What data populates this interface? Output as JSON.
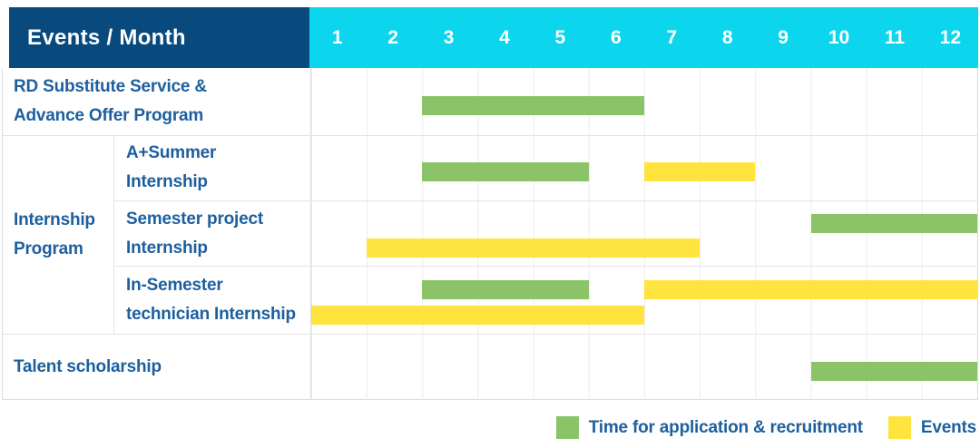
{
  "header": {
    "title": "Events / Month"
  },
  "months": [
    "1",
    "2",
    "3",
    "4",
    "5",
    "6",
    "7",
    "8",
    "9",
    "10",
    "11",
    "12"
  ],
  "colors": {
    "navy_header": "#084a7e",
    "cyan_header": "#0cd6ee",
    "green": "#8bc468",
    "yellow": "#ffe33f",
    "label_blue": "#1d5f9e"
  },
  "legend": {
    "items": [
      {
        "color": "green",
        "label": "Time for application & recruitment"
      },
      {
        "color": "yellow",
        "label": "Events"
      }
    ]
  },
  "chart_data": {
    "type": "gantt",
    "title": "Events / Month",
    "x_axis": {
      "label": "Month",
      "ticks": [
        1,
        2,
        3,
        4,
        5,
        6,
        7,
        8,
        9,
        10,
        11,
        12
      ]
    },
    "legend_entries": [
      "Time for application & recruitment",
      "Events"
    ],
    "group_spans": [
      {
        "label": "Internship Program",
        "label_lines": [
          "Internship",
          "Program"
        ],
        "row_indexes": [
          1,
          2,
          3
        ]
      }
    ],
    "rows": [
      {
        "group": "",
        "label": "RD Substitute Service & Advance Offer Program",
        "label_lines": [
          "RD Substitute Service &",
          "Advance Offer Program"
        ],
        "bars": [
          {
            "series": "Time for application & recruitment",
            "color": "green",
            "lane": "center",
            "start_month": 3,
            "end_month": 6
          }
        ]
      },
      {
        "group": "Internship Program",
        "label": "A+Summer Internship",
        "label_lines": [
          "A+Summer",
          "Internship"
        ],
        "bars": [
          {
            "series": "Time for application & recruitment",
            "color": "green",
            "lane": "center",
            "start_month": 3,
            "end_month": 5
          },
          {
            "series": "Events",
            "color": "yellow",
            "lane": "center",
            "start_month": 7,
            "end_month": 8
          }
        ]
      },
      {
        "group": "Internship Program",
        "label": "Semester project Internship",
        "label_lines": [
          "Semester project",
          "Internship"
        ],
        "bars": [
          {
            "series": "Time for application & recruitment",
            "color": "green",
            "lane": "top",
            "start_month": 10,
            "end_month": 12
          },
          {
            "series": "Events",
            "color": "yellow",
            "lane": "bottom",
            "start_month": 2,
            "end_month": 7
          }
        ]
      },
      {
        "group": "Internship Program",
        "label": "In-Semester technician Internship",
        "label_lines": [
          "In-Semester",
          "technician Internship"
        ],
        "bars": [
          {
            "series": "Time for application & recruitment",
            "color": "green",
            "lane": "top",
            "start_month": 3,
            "end_month": 5
          },
          {
            "series": "Events",
            "color": "yellow",
            "lane": "top",
            "start_month": 7,
            "end_month": 12
          },
          {
            "series": "Events",
            "color": "yellow",
            "lane": "bottom",
            "start_month": 1,
            "end_month": 6
          }
        ]
      },
      {
        "group": "",
        "label": "Talent scholarship",
        "label_lines": [
          "Talent scholarship"
        ],
        "bars": [
          {
            "series": "Time for application & recruitment",
            "color": "green",
            "lane": "center",
            "start_month": 10,
            "end_month": 12
          }
        ]
      }
    ]
  }
}
